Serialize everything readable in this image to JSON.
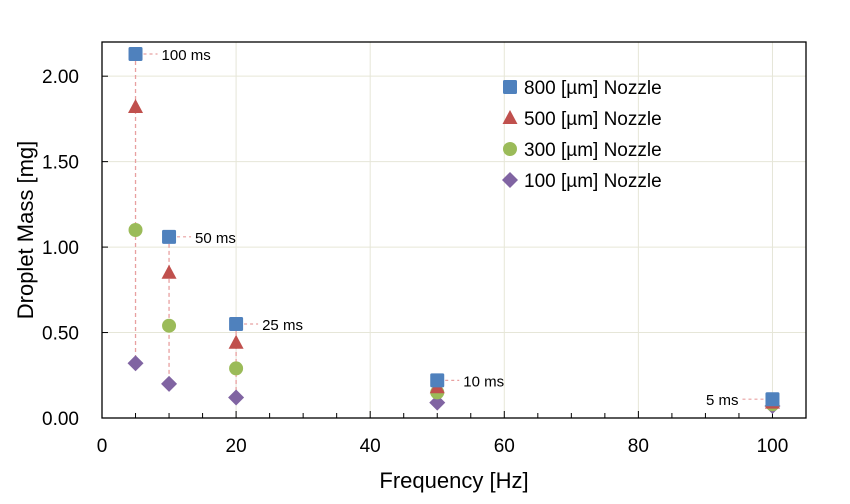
{
  "chart_data": {
    "type": "scatter",
    "title": "",
    "xlabel": "Frequency [Hz]",
    "ylabel": "Droplet Mass [mg]",
    "xlim": [
      0,
      105
    ],
    "ylim": [
      0,
      2.2
    ],
    "xticks": [
      0,
      20,
      40,
      60,
      80,
      100
    ],
    "xtick_labels": [
      "0",
      "20",
      "40",
      "60",
      "80",
      "100"
    ],
    "yticks": [
      0,
      0.5,
      1.0,
      1.5,
      2.0
    ],
    "ytick_labels": [
      "0.00",
      "0.50",
      "1.00",
      "1.50",
      "2.00"
    ],
    "grid": true,
    "legend_position": "top-right",
    "series": [
      {
        "name": "800 [µm] Nozzle",
        "marker": "square",
        "color": "#4f81bd",
        "x": [
          5,
          10,
          20,
          50,
          100
        ],
        "y": [
          2.13,
          1.06,
          0.55,
          0.22,
          0.11
        ]
      },
      {
        "name": "500 [µm] Nozzle",
        "marker": "triangle",
        "color": "#c0504d",
        "x": [
          5,
          10,
          20,
          50,
          100
        ],
        "y": [
          1.82,
          0.85,
          0.44,
          0.18,
          0.09
        ]
      },
      {
        "name": "300 [µm] Nozzle",
        "marker": "circle",
        "color": "#9bbb59",
        "x": [
          5,
          10,
          20,
          50,
          100
        ],
        "y": [
          1.1,
          0.54,
          0.29,
          0.15,
          0.08
        ]
      },
      {
        "name": "100 [µm] Nozzle",
        "marker": "diamond",
        "color": "#8064a2",
        "x": [
          5,
          10,
          20,
          50,
          100
        ],
        "y": [
          0.32,
          0.2,
          0.12,
          0.09,
          0.07
        ]
      }
    ],
    "annotations": [
      {
        "text": "100 ms",
        "x": 5,
        "y": 2.13,
        "side": "right"
      },
      {
        "text": "50 ms",
        "x": 10,
        "y": 1.06,
        "side": "right"
      },
      {
        "text": "25 ms",
        "x": 20,
        "y": 0.55,
        "side": "right"
      },
      {
        "text": "10 ms",
        "x": 50,
        "y": 0.22,
        "side": "right"
      },
      {
        "text": "5 ms",
        "x": 100,
        "y": 0.11,
        "side": "left"
      }
    ],
    "drop_line_color": "#e8a0a0"
  }
}
